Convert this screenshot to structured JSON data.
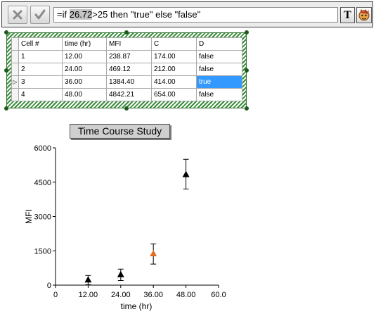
{
  "formula_bar": {
    "cancel_icon": "x-icon",
    "accept_icon": "checkmark-icon",
    "formula_prefix": "=if ",
    "formula_highlight": "26.72",
    "formula_suffix": ">25 then \"true\" else \"false\"",
    "text_tool_label": "T",
    "wizard_icon": "wizard-face-icon"
  },
  "table": {
    "columns": [
      "Cell #",
      "time (hr)",
      "MFI",
      "C",
      "D"
    ],
    "rows": [
      {
        "marker": "",
        "cells": [
          "1",
          "12.00",
          "238.87",
          "174.00",
          "false"
        ]
      },
      {
        "marker": "",
        "cells": [
          "2",
          "24.00",
          "469.12",
          "212.00",
          "false"
        ]
      },
      {
        "marker": "▷",
        "cells": [
          "3",
          "36.00",
          "1384.40",
          "414.00",
          "true"
        ]
      },
      {
        "marker": "",
        "cells": [
          "4",
          "48.00",
          "4842.21",
          "654.00",
          "false"
        ]
      }
    ],
    "selected_row": 2,
    "selected_col": 4,
    "selection_color": "#3399ff",
    "hatch_color": "#3c8d3c"
  },
  "chart_data": {
    "type": "scatter",
    "title": "Time Course Study",
    "xlabel": "time (hr)",
    "ylabel": "MFI",
    "xlim": [
      0,
      60
    ],
    "ylim": [
      0,
      6000
    ],
    "xticks": [
      "0",
      "12.00",
      "24.00",
      "36.00",
      "48.00",
      "60.0"
    ],
    "xtick_values": [
      0,
      12,
      24,
      36,
      48,
      60
    ],
    "yticks": [
      "0",
      "1500",
      "3000",
      "4500",
      "6000"
    ],
    "ytick_values": [
      0,
      1500,
      3000,
      4500,
      6000
    ],
    "grid": false,
    "points": [
      {
        "x": 12,
        "y": 238.87,
        "err_low": 20,
        "err_high": 420,
        "color": "#000000"
      },
      {
        "x": 24,
        "y": 469.12,
        "err_low": 200,
        "err_high": 700,
        "color": "#000000"
      },
      {
        "x": 36,
        "y": 1384.4,
        "err_low": 920,
        "err_high": 1800,
        "color": "#e07020"
      },
      {
        "x": 48,
        "y": 4842.21,
        "err_low": 4200,
        "err_high": 5500,
        "color": "#000000"
      }
    ]
  }
}
